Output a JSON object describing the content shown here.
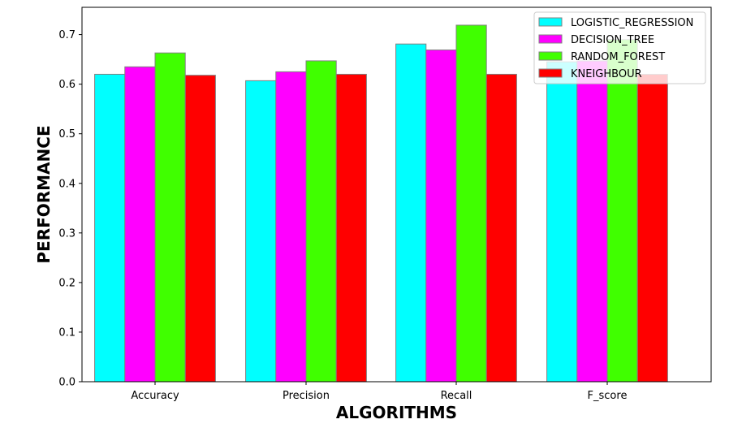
{
  "chart_data": {
    "type": "bar",
    "title": "",
    "xlabel": "ALGORITHMS",
    "ylabel": "PERFORMANCE",
    "categories": [
      "Accuracy",
      "Precision",
      "Recall",
      "F_score"
    ],
    "ylim": [
      0,
      0.755
    ],
    "yticks": [
      0.0,
      0.1,
      0.2,
      0.3,
      0.4,
      0.5,
      0.6,
      0.7
    ],
    "ytick_labels": [
      "0.0",
      "0.1",
      "0.2",
      "0.3",
      "0.4",
      "0.5",
      "0.6",
      "0.7"
    ],
    "grid": false,
    "legend_position": "top-right",
    "series": [
      {
        "name": "LOGISTIC_REGRESSION",
        "color": "#00ffff",
        "values": [
          0.62,
          0.607,
          0.681,
          0.645
        ]
      },
      {
        "name": "DECISION_TREE",
        "color": "#ff00ff",
        "values": [
          0.635,
          0.625,
          0.669,
          0.647
        ]
      },
      {
        "name": "RANDOM_FOREST",
        "color": "#40ff00",
        "values": [
          0.663,
          0.647,
          0.719,
          0.69
        ]
      },
      {
        "name": "KNEIGHBOUR",
        "color": "#ff0000",
        "values": [
          0.618,
          0.62,
          0.62,
          0.62
        ]
      }
    ]
  }
}
